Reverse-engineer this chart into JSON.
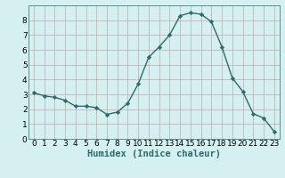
{
  "xlabel": "Humidex (Indice chaleur)",
  "x": [
    0,
    1,
    2,
    3,
    4,
    5,
    6,
    7,
    8,
    9,
    10,
    11,
    12,
    13,
    14,
    15,
    16,
    17,
    18,
    19,
    20,
    21,
    22,
    23
  ],
  "y": [
    3.1,
    2.9,
    2.8,
    2.6,
    2.2,
    2.2,
    2.1,
    1.65,
    1.8,
    2.4,
    3.7,
    5.5,
    6.2,
    7.0,
    8.3,
    8.5,
    8.4,
    7.9,
    6.2,
    4.1,
    3.2,
    1.7,
    1.4,
    0.5
  ],
  "line_color": "#2e6b6b",
  "marker": "D",
  "marker_size": 2.2,
  "bg_color": "#d4f0f0",
  "grid_major_color": "#c8dede",
  "grid_minor_color": "#dceaea",
  "ylim": [
    0,
    9
  ],
  "xlim": [
    -0.5,
    23.5
  ],
  "yticks": [
    0,
    1,
    2,
    3,
    4,
    5,
    6,
    7,
    8
  ],
  "xticks": [
    0,
    1,
    2,
    3,
    4,
    5,
    6,
    7,
    8,
    9,
    10,
    11,
    12,
    13,
    14,
    15,
    16,
    17,
    18,
    19,
    20,
    21,
    22,
    23
  ],
  "tick_label_fontsize": 6.5,
  "xlabel_fontsize": 7.5,
  "line_width": 1.0
}
